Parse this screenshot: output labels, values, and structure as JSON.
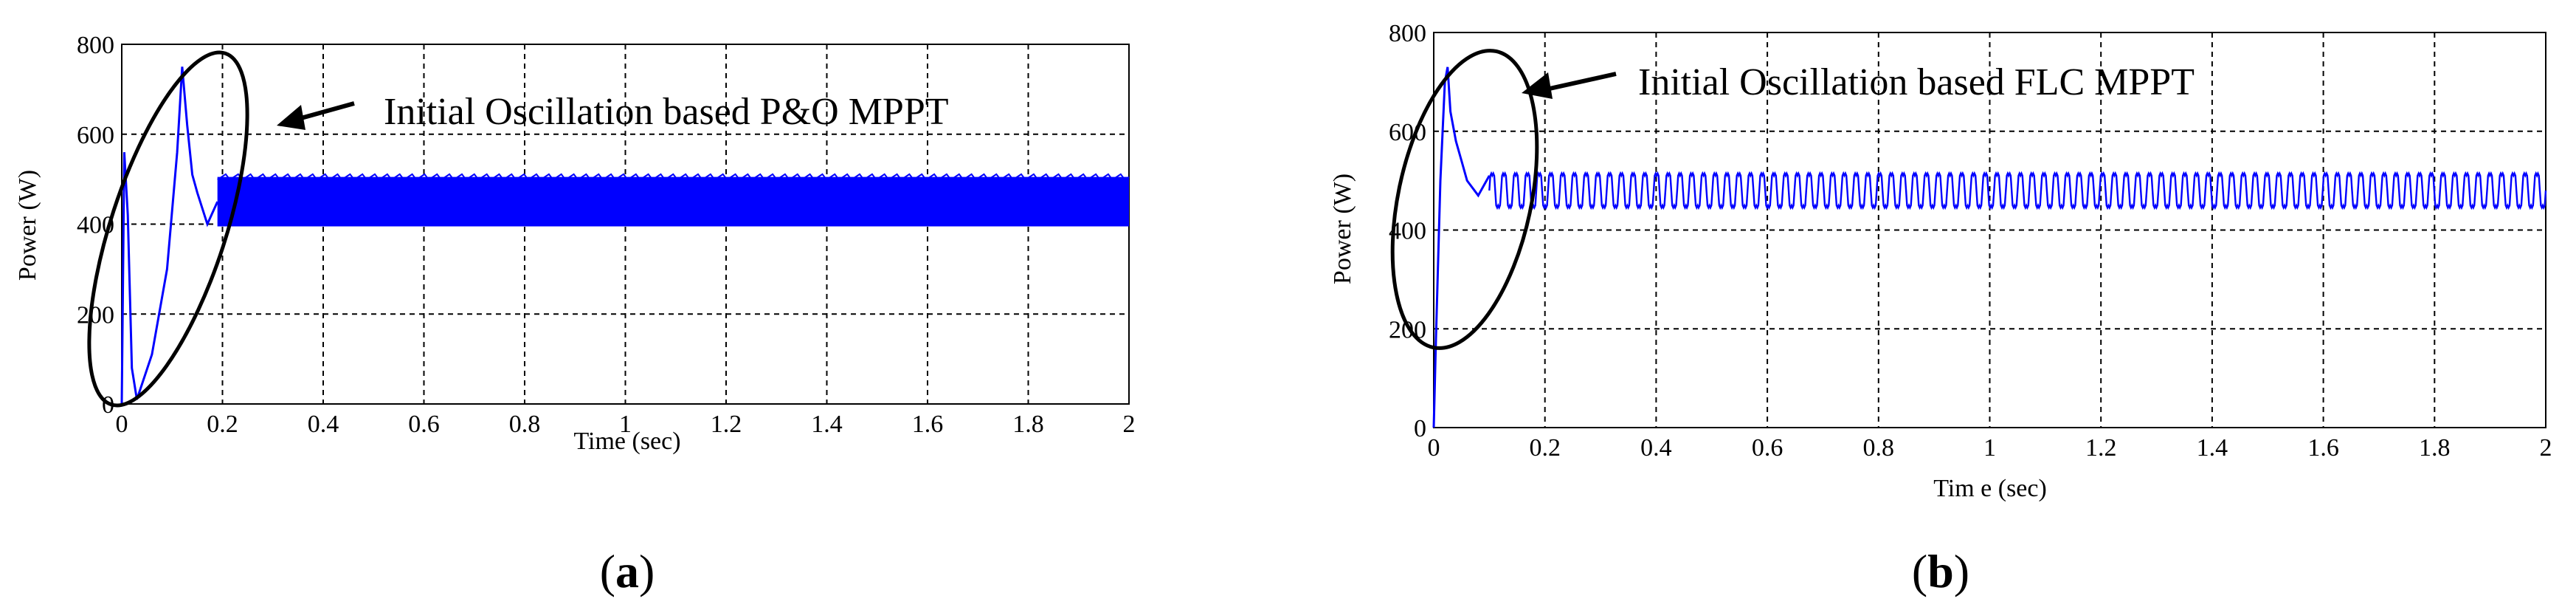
{
  "chart_data": [
    {
      "type": "line",
      "panel_label": "(a)",
      "panel_letter": "a",
      "xlabel": "Time (sec)",
      "ylabel": "Power (W)",
      "xlim": [
        0,
        2
      ],
      "ylim": [
        0,
        800
      ],
      "xticks": [
        "0",
        "0.2",
        "0.4",
        "0.6",
        "0.8",
        "1",
        "1.2",
        "1.4",
        "1.6",
        "1.8",
        "2"
      ],
      "yticks": [
        "0",
        "200",
        "400",
        "600",
        "800"
      ],
      "grid": true,
      "line_color": "#0000ff",
      "annotation": "Initial Oscillation based P&O MPPT",
      "transient": [
        [
          0,
          0
        ],
        [
          0.005,
          560
        ],
        [
          0.012,
          420
        ],
        [
          0.02,
          80
        ],
        [
          0.03,
          10
        ],
        [
          0.06,
          110
        ],
        [
          0.09,
          300
        ],
        [
          0.11,
          560
        ],
        [
          0.12,
          750
        ],
        [
          0.13,
          620
        ],
        [
          0.14,
          510
        ],
        [
          0.15,
          470
        ],
        [
          0.17,
          400
        ],
        [
          0.19,
          450
        ]
      ],
      "steady_band": {
        "x_start": 0.19,
        "x_end": 2.0,
        "low": 395,
        "high": 505
      }
    },
    {
      "type": "line",
      "panel_label": "(b)",
      "panel_letter": "b",
      "xlabel": "Tim e (sec)",
      "ylabel": "Power (W)",
      "xlim": [
        0,
        2
      ],
      "ylim": [
        0,
        800
      ],
      "xticks": [
        "0",
        "0.2",
        "0.4",
        "0.6",
        "0.8",
        "1",
        "1.2",
        "1.4",
        "1.6",
        "1.8",
        "2"
      ],
      "yticks": [
        "0",
        "200",
        "400",
        "600",
        "800"
      ],
      "grid": true,
      "line_color": "#0000ff",
      "annotation": "Initial Oscillation based FLC MPPT",
      "transient": [
        [
          0,
          0
        ],
        [
          0.004,
          180
        ],
        [
          0.012,
          500
        ],
        [
          0.02,
          700
        ],
        [
          0.025,
          730
        ],
        [
          0.03,
          640
        ],
        [
          0.04,
          580
        ],
        [
          0.05,
          540
        ],
        [
          0.06,
          500
        ],
        [
          0.08,
          470
        ],
        [
          0.1,
          510
        ]
      ],
      "steady_osc": {
        "x_start": 0.1,
        "x_end": 2.0,
        "mean": 480,
        "amplitude": 40,
        "cycles": 90
      }
    }
  ]
}
